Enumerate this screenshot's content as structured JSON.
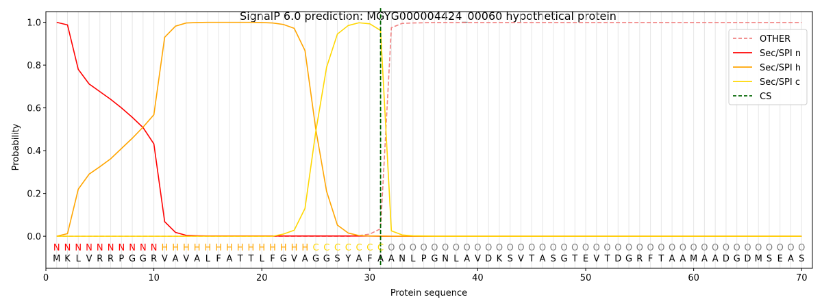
{
  "chart_data": {
    "type": "line",
    "title": "SignalP 6.0 prediction: MGYG000004424_00060 hypothetical protein",
    "xlabel": "Protein sequence",
    "ylabel": "Probability",
    "xlim": [
      0,
      71
    ],
    "ylim": [
      -0.15,
      1.05
    ],
    "x_ticks": [
      0,
      10,
      20,
      30,
      40,
      50,
      60,
      70
    ],
    "y_ticks": [
      0.0,
      0.2,
      0.4,
      0.6,
      0.8,
      1.0
    ],
    "x_tick_labels": [
      "0",
      "10",
      "20",
      "30",
      "40",
      "50",
      "60",
      "70"
    ],
    "y_tick_labels": [
      "0.0",
      "0.2",
      "0.4",
      "0.6",
      "0.8",
      "1.0"
    ],
    "grid": "vertical lines at each residue",
    "legend_position": "top-right",
    "sequence": [
      "M",
      "K",
      "L",
      "V",
      "R",
      "R",
      "P",
      "G",
      "G",
      "R",
      "V",
      "A",
      "V",
      "A",
      "L",
      "F",
      "A",
      "T",
      "T",
      "L",
      "F",
      "G",
      "V",
      "A",
      "G",
      "G",
      "S",
      "Y",
      "A",
      "F",
      "A",
      "A",
      "N",
      "L",
      "P",
      "G",
      "N",
      "L",
      "A",
      "V",
      "D",
      "K",
      "S",
      "V",
      "T",
      "A",
      "S",
      "G",
      "T",
      "E",
      "V",
      "T",
      "D",
      "G",
      "R",
      "F",
      "T",
      "A",
      "A",
      "M",
      "A",
      "A",
      "D",
      "G",
      "D",
      "M",
      "S",
      "E",
      "A",
      "S"
    ],
    "labels": [
      "N",
      "N",
      "N",
      "N",
      "N",
      "N",
      "N",
      "N",
      "N",
      "N",
      "H",
      "H",
      "H",
      "H",
      "H",
      "H",
      "H",
      "H",
      "H",
      "H",
      "H",
      "H",
      "H",
      "H",
      "C",
      "C",
      "C",
      "C",
      "C",
      "C",
      "C",
      "O",
      "O",
      "O",
      "O",
      "O",
      "O",
      "O",
      "O",
      "O",
      "O",
      "O",
      "O",
      "O",
      "O",
      "O",
      "O",
      "O",
      "O",
      "O",
      "O",
      "O",
      "O",
      "O",
      "O",
      "O",
      "O",
      "O",
      "O",
      "O",
      "O",
      "O",
      "O",
      "O",
      "O",
      "O",
      "O",
      "O",
      "O",
      "O"
    ],
    "label_colors": {
      "N": "#ff0000",
      "H": "#ffa500",
      "C": "#ffd700",
      "O": "#808080"
    },
    "series": [
      {
        "name": "OTHER",
        "color": "#f08080",
        "dash": true,
        "values": [
          0,
          0,
          0,
          0,
          0,
          0,
          0,
          0,
          0,
          0,
          0,
          0,
          0,
          0,
          0,
          0,
          0,
          0,
          0,
          0,
          0,
          0,
          0,
          0,
          0,
          0,
          0,
          0,
          0.003,
          0.01,
          0.035,
          0.975,
          0.995,
          0.997,
          0.998,
          0.999,
          0.999,
          0.999,
          0.999,
          0.999,
          0.999,
          0.999,
          0.999,
          0.999,
          0.999,
          0.999,
          0.999,
          0.999,
          0.999,
          0.999,
          0.999,
          0.999,
          0.999,
          0.999,
          0.999,
          0.999,
          0.999,
          0.999,
          0.999,
          0.999,
          0.999,
          0.999,
          0.999,
          0.999,
          0.999,
          0.999,
          0.999,
          0.999,
          0.999,
          0.999
        ]
      },
      {
        "name": "Sec/SPI n",
        "color": "#ff0000",
        "dash": false,
        "values": [
          1.0,
          0.988,
          0.78,
          0.712,
          0.676,
          0.64,
          0.6,
          0.556,
          0.508,
          0.432,
          0.068,
          0.018,
          0.004,
          0.002,
          0.001,
          0.001,
          0.001,
          0.001,
          0.001,
          0.001,
          0.001,
          0.001,
          0.001,
          0.001,
          0.001,
          0.001,
          0.001,
          0.001,
          0.001,
          0.001,
          0,
          0,
          0,
          0,
          0,
          0,
          0,
          0,
          0,
          0,
          0,
          0,
          0,
          0,
          0,
          0,
          0,
          0,
          0,
          0,
          0,
          0,
          0,
          0,
          0,
          0,
          0,
          0,
          0,
          0,
          0,
          0,
          0,
          0,
          0,
          0,
          0,
          0,
          0,
          0
        ]
      },
      {
        "name": "Sec/SPI h",
        "color": "#ffa500",
        "dash": false,
        "values": [
          0.0,
          0.012,
          0.22,
          0.29,
          0.325,
          0.362,
          0.41,
          0.458,
          0.51,
          0.568,
          0.93,
          0.982,
          0.997,
          0.999,
          1.0,
          1.0,
          1.0,
          1.0,
          1.0,
          0.999,
          0.997,
          0.99,
          0.972,
          0.868,
          0.5,
          0.21,
          0.052,
          0.015,
          0.003,
          0.001,
          0.001,
          0,
          0,
          0,
          0,
          0,
          0,
          0,
          0,
          0,
          0,
          0,
          0,
          0,
          0,
          0,
          0,
          0,
          0,
          0,
          0,
          0,
          0,
          0,
          0,
          0,
          0,
          0,
          0,
          0,
          0,
          0,
          0,
          0,
          0,
          0,
          0,
          0,
          0,
          0
        ]
      },
      {
        "name": "Sec/SPI c",
        "color": "#ffd700",
        "dash": false,
        "values": [
          0,
          0,
          0,
          0,
          0,
          0,
          0,
          0,
          0,
          0,
          0,
          0,
          0,
          0,
          0,
          0,
          0,
          0,
          0,
          0,
          0,
          0.01,
          0.028,
          0.13,
          0.49,
          0.79,
          0.945,
          0.985,
          0.998,
          0.993,
          0.962,
          0.025,
          0.006,
          0.002,
          0.001,
          0,
          0,
          0,
          0,
          0,
          0,
          0,
          0,
          0,
          0,
          0,
          0,
          0,
          0,
          0,
          0,
          0,
          0,
          0,
          0,
          0,
          0,
          0,
          0,
          0,
          0,
          0,
          0,
          0,
          0,
          0,
          0,
          0,
          0,
          0
        ]
      }
    ],
    "cleavage_site": {
      "name": "CS",
      "x": 31,
      "color": "#006400"
    },
    "legend": [
      "OTHER",
      "Sec/SPI n",
      "Sec/SPI h",
      "Sec/SPI c",
      "CS"
    ]
  }
}
